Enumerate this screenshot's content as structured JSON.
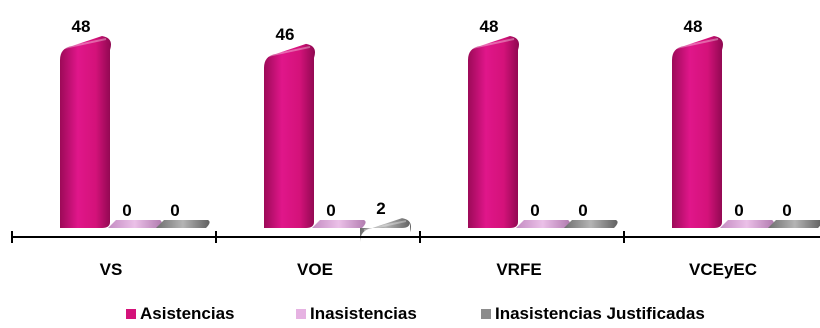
{
  "chart_data": {
    "type": "bar",
    "categories": [
      "VS",
      "VOE",
      "VRFE",
      "VCEyEC"
    ],
    "series": [
      {
        "name": "Asistencias",
        "values": [
          48,
          46,
          48,
          48
        ],
        "color": "#d4127a"
      },
      {
        "name": "Inasistencias",
        "values": [
          0,
          0,
          0,
          0
        ],
        "color": "#d9a0d6"
      },
      {
        "name": "Inasistencias Justificadas",
        "values": [
          0,
          2,
          0,
          0
        ],
        "color": "#8c8c8c"
      }
    ],
    "ylim": [
      0,
      48
    ],
    "grid": false,
    "legend_position": "bottom",
    "style": "3d-cylinder"
  }
}
